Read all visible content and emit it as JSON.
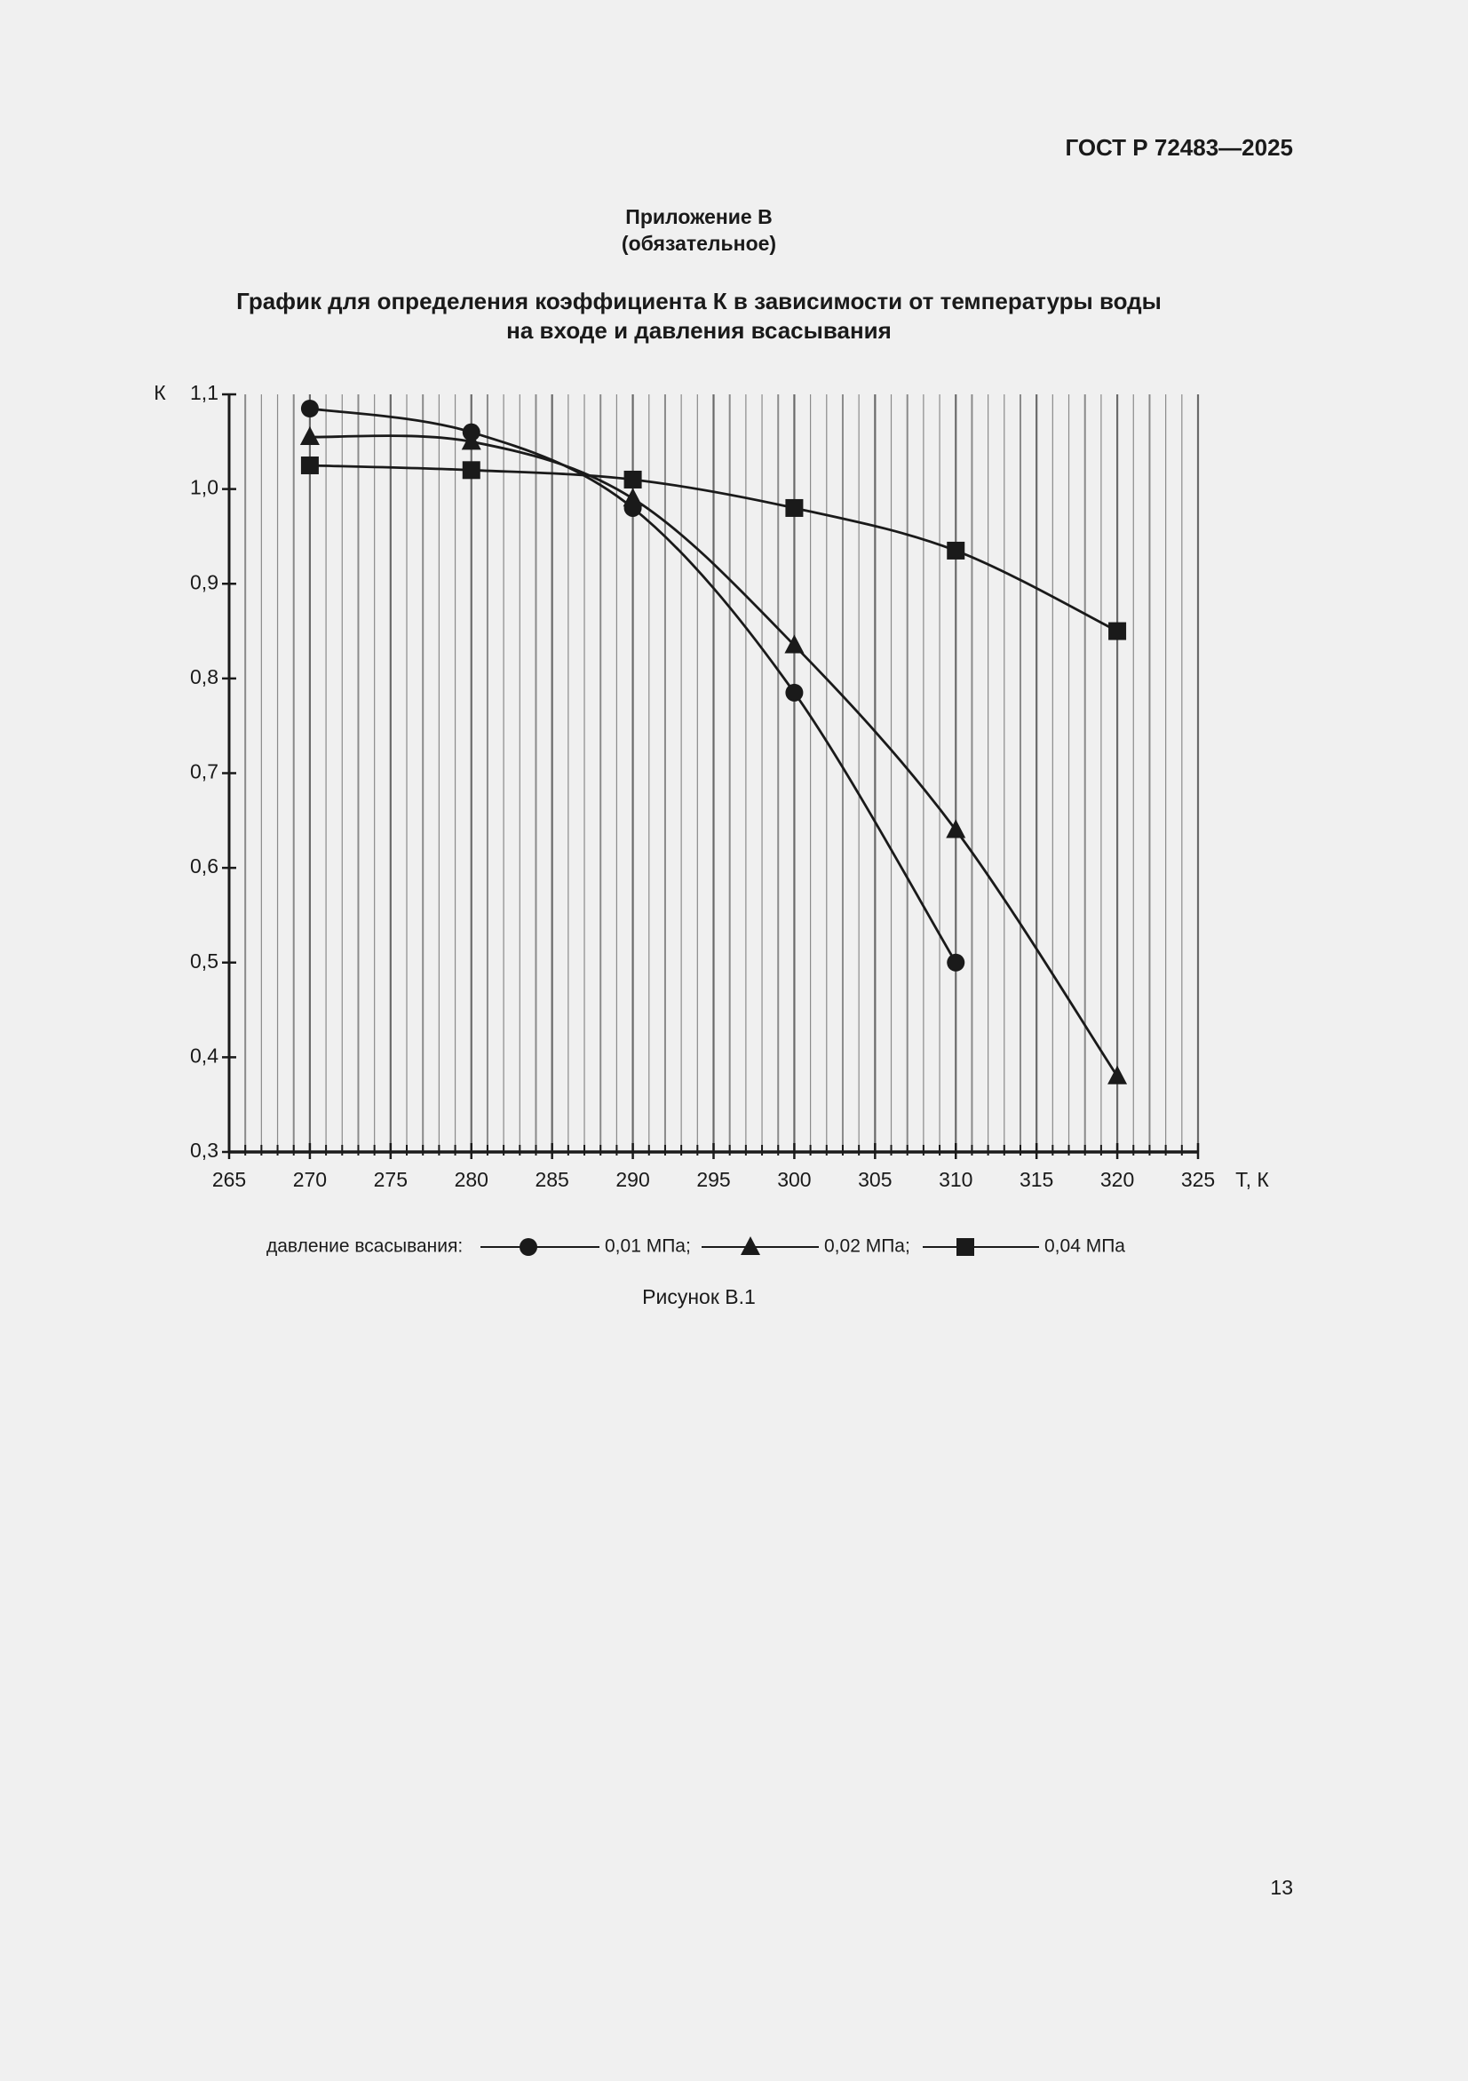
{
  "header": {
    "code": "ГОСТ Р 72483—2025"
  },
  "appendix": {
    "title": "Приложение В",
    "status": "(обязательное)"
  },
  "heading": [
    "График для определения коэффициента К в зависимости от температуры воды",
    "на входе и давления всасывания"
  ],
  "chart_data": {
    "type": "line",
    "y_label": "К",
    "x_label": "Т, К",
    "x": [
      270,
      280,
      290,
      300,
      310,
      320
    ],
    "series": [
      {
        "name": "0,01 МПа;",
        "marker": "circle",
        "color": "#1a1a1a",
        "values": [
          1.085,
          1.06,
          0.98,
          0.785,
          0.5,
          null
        ]
      },
      {
        "name": "0,02 МПа;",
        "marker": "triangle",
        "color": "#1a1a1a",
        "values": [
          1.055,
          1.05,
          0.99,
          0.835,
          0.64,
          0.38
        ]
      },
      {
        "name": "0,04 МПа",
        "marker": "square",
        "color": "#1a1a1a",
        "values": [
          1.025,
          1.02,
          1.01,
          0.98,
          0.935,
          0.85
        ]
      }
    ],
    "legend_title": "давление всасывания:",
    "xlim": [
      265,
      325
    ],
    "xticks": [
      265,
      270,
      275,
      280,
      285,
      290,
      295,
      300,
      305,
      310,
      315,
      320,
      325
    ],
    "xminorticks": [
      266,
      267,
      268,
      269,
      271,
      272,
      273,
      274,
      276,
      277,
      278,
      279,
      281,
      282,
      283,
      284,
      286,
      287,
      288,
      289,
      291,
      292,
      293,
      294,
      296,
      297,
      298,
      299,
      301,
      302,
      303,
      304,
      306,
      307,
      308,
      309,
      311,
      312,
      313,
      314,
      316,
      317,
      318,
      319,
      321,
      322,
      323,
      324
    ],
    "ylim": [
      0.3,
      1.1
    ],
    "yticks": [
      {
        "value": 0.3,
        "label": "0,3"
      },
      {
        "value": 0.4,
        "label": "0,4"
      },
      {
        "value": 0.5,
        "label": "0,5"
      },
      {
        "value": 0.6,
        "label": "0,6"
      },
      {
        "value": 0.7,
        "label": "0,7"
      },
      {
        "value": 0.8,
        "label": "0,8"
      },
      {
        "value": 0.9,
        "label": "0,9"
      },
      {
        "value": 1.0,
        "label": "1,0"
      },
      {
        "value": 1.1,
        "label": "1,1"
      }
    ],
    "grid": true
  },
  "caption": "Рисунок В.1",
  "page_number": "13"
}
